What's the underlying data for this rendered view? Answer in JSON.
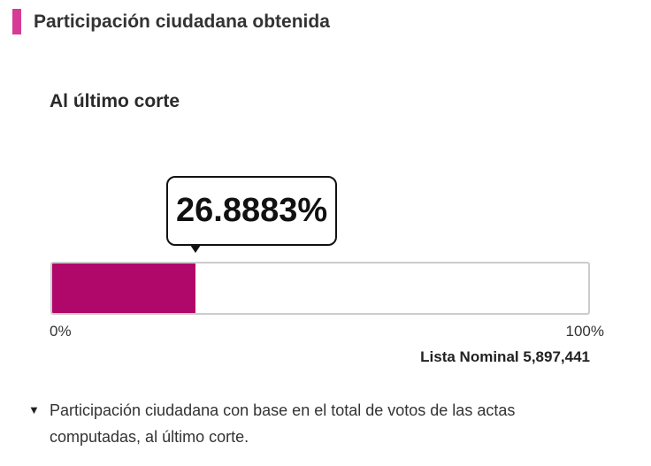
{
  "header": {
    "title": "Participación ciudadana obtenida"
  },
  "section": {
    "title": "Al último corte"
  },
  "progress": {
    "value": 26.8883,
    "value_label": "26.8883%",
    "lim": [
      0,
      100
    ],
    "ticks": [
      {
        "value": 0,
        "label": "0%"
      },
      {
        "value": 100,
        "label": "100%"
      }
    ],
    "color": "#b0086a"
  },
  "nominal": {
    "label": "Lista Nominal",
    "value": "5,897,441"
  },
  "note": {
    "text": "Participación ciudadana con base en el total de votos de las actas computadas, al último corte."
  }
}
